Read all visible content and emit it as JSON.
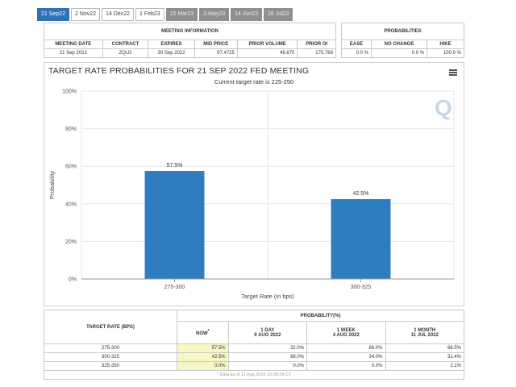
{
  "tabs": [
    {
      "label": "21 Sep22",
      "state": "active"
    },
    {
      "label": "2 Nov22",
      "state": "normal"
    },
    {
      "label": "14 Dec22",
      "state": "normal"
    },
    {
      "label": "1 Feb23",
      "state": "normal"
    },
    {
      "label": "15 Mar23",
      "state": "future"
    },
    {
      "label": "3 May23",
      "state": "future"
    },
    {
      "label": "14 Jun23",
      "state": "future"
    },
    {
      "label": "26 Jul23",
      "state": "future"
    }
  ],
  "meeting_info": {
    "header": "MEETING INFORMATION",
    "columns": [
      "MEETING DATE",
      "CONTRACT",
      "EXPIRES",
      "MID PRICE",
      "PRIOR VOLUME",
      "PRIOR OI"
    ],
    "values": [
      "21 Sep 2022",
      "ZQU2",
      "30 Sep 2022",
      "97.4725",
      "46,870",
      "175,768"
    ]
  },
  "probabilities": {
    "header": "PROBABILITIES",
    "columns": [
      "EASE",
      "NO CHANGE",
      "HIKE"
    ],
    "values": [
      "0.0 %",
      "0.0 %",
      "100.0 %"
    ]
  },
  "chart_data": {
    "type": "bar",
    "title": "TARGET RATE PROBABILITIES FOR 21 SEP 2022 FED MEETING",
    "subtitle": "Current target rate is 225-250",
    "categories": [
      "275-300",
      "300-325"
    ],
    "values": [
      57.5,
      42.5
    ],
    "data_labels": [
      "57.5%",
      "42.5%"
    ],
    "xlabel": "Target Rate (in bps)",
    "ylabel": "Probability",
    "ylim": [
      0,
      100
    ],
    "yticks": [
      "0%",
      "20%",
      "40%",
      "60%",
      "80%",
      "100%"
    ],
    "ytick_values": [
      0,
      20,
      40,
      60,
      80,
      100
    ],
    "grid": true,
    "legend": "none",
    "bar_color": "#2f7dc1"
  },
  "bottom_table": {
    "target_header": "TARGET RATE (BPS)",
    "prob_header": "PROBABILITY(%)",
    "periods": [
      {
        "line1": "NOW",
        "line2": "",
        "mark": "*"
      },
      {
        "line1": "1 DAY",
        "line2": "9 AUG 2022"
      },
      {
        "line1": "1 WEEK",
        "line2": "4 AUG 2022"
      },
      {
        "line1": "1 MONTH",
        "line2": "11 JUL 2022"
      }
    ],
    "rows": [
      {
        "rate": "275-300",
        "values": [
          "57.5%",
          "32.0%",
          "66.0%",
          "66.5%"
        ]
      },
      {
        "rate": "300-325",
        "values": [
          "42.5%",
          "68.0%",
          "34.0%",
          "31.4%"
        ]
      },
      {
        "rate": "325-350",
        "values": [
          "0.0%",
          "0.0%",
          "0.0%",
          "2.1%"
        ]
      }
    ],
    "footnote": "* Data as of 11 Aug 2022 12:09:29 CT"
  },
  "colors": {
    "accent": "#2f73b5",
    "bar": "#2f7dc1",
    "highlight": "#f7f7c5"
  },
  "icons": {
    "menu": "hamburger-menu-icon",
    "watermark": "q-logo-icon"
  }
}
